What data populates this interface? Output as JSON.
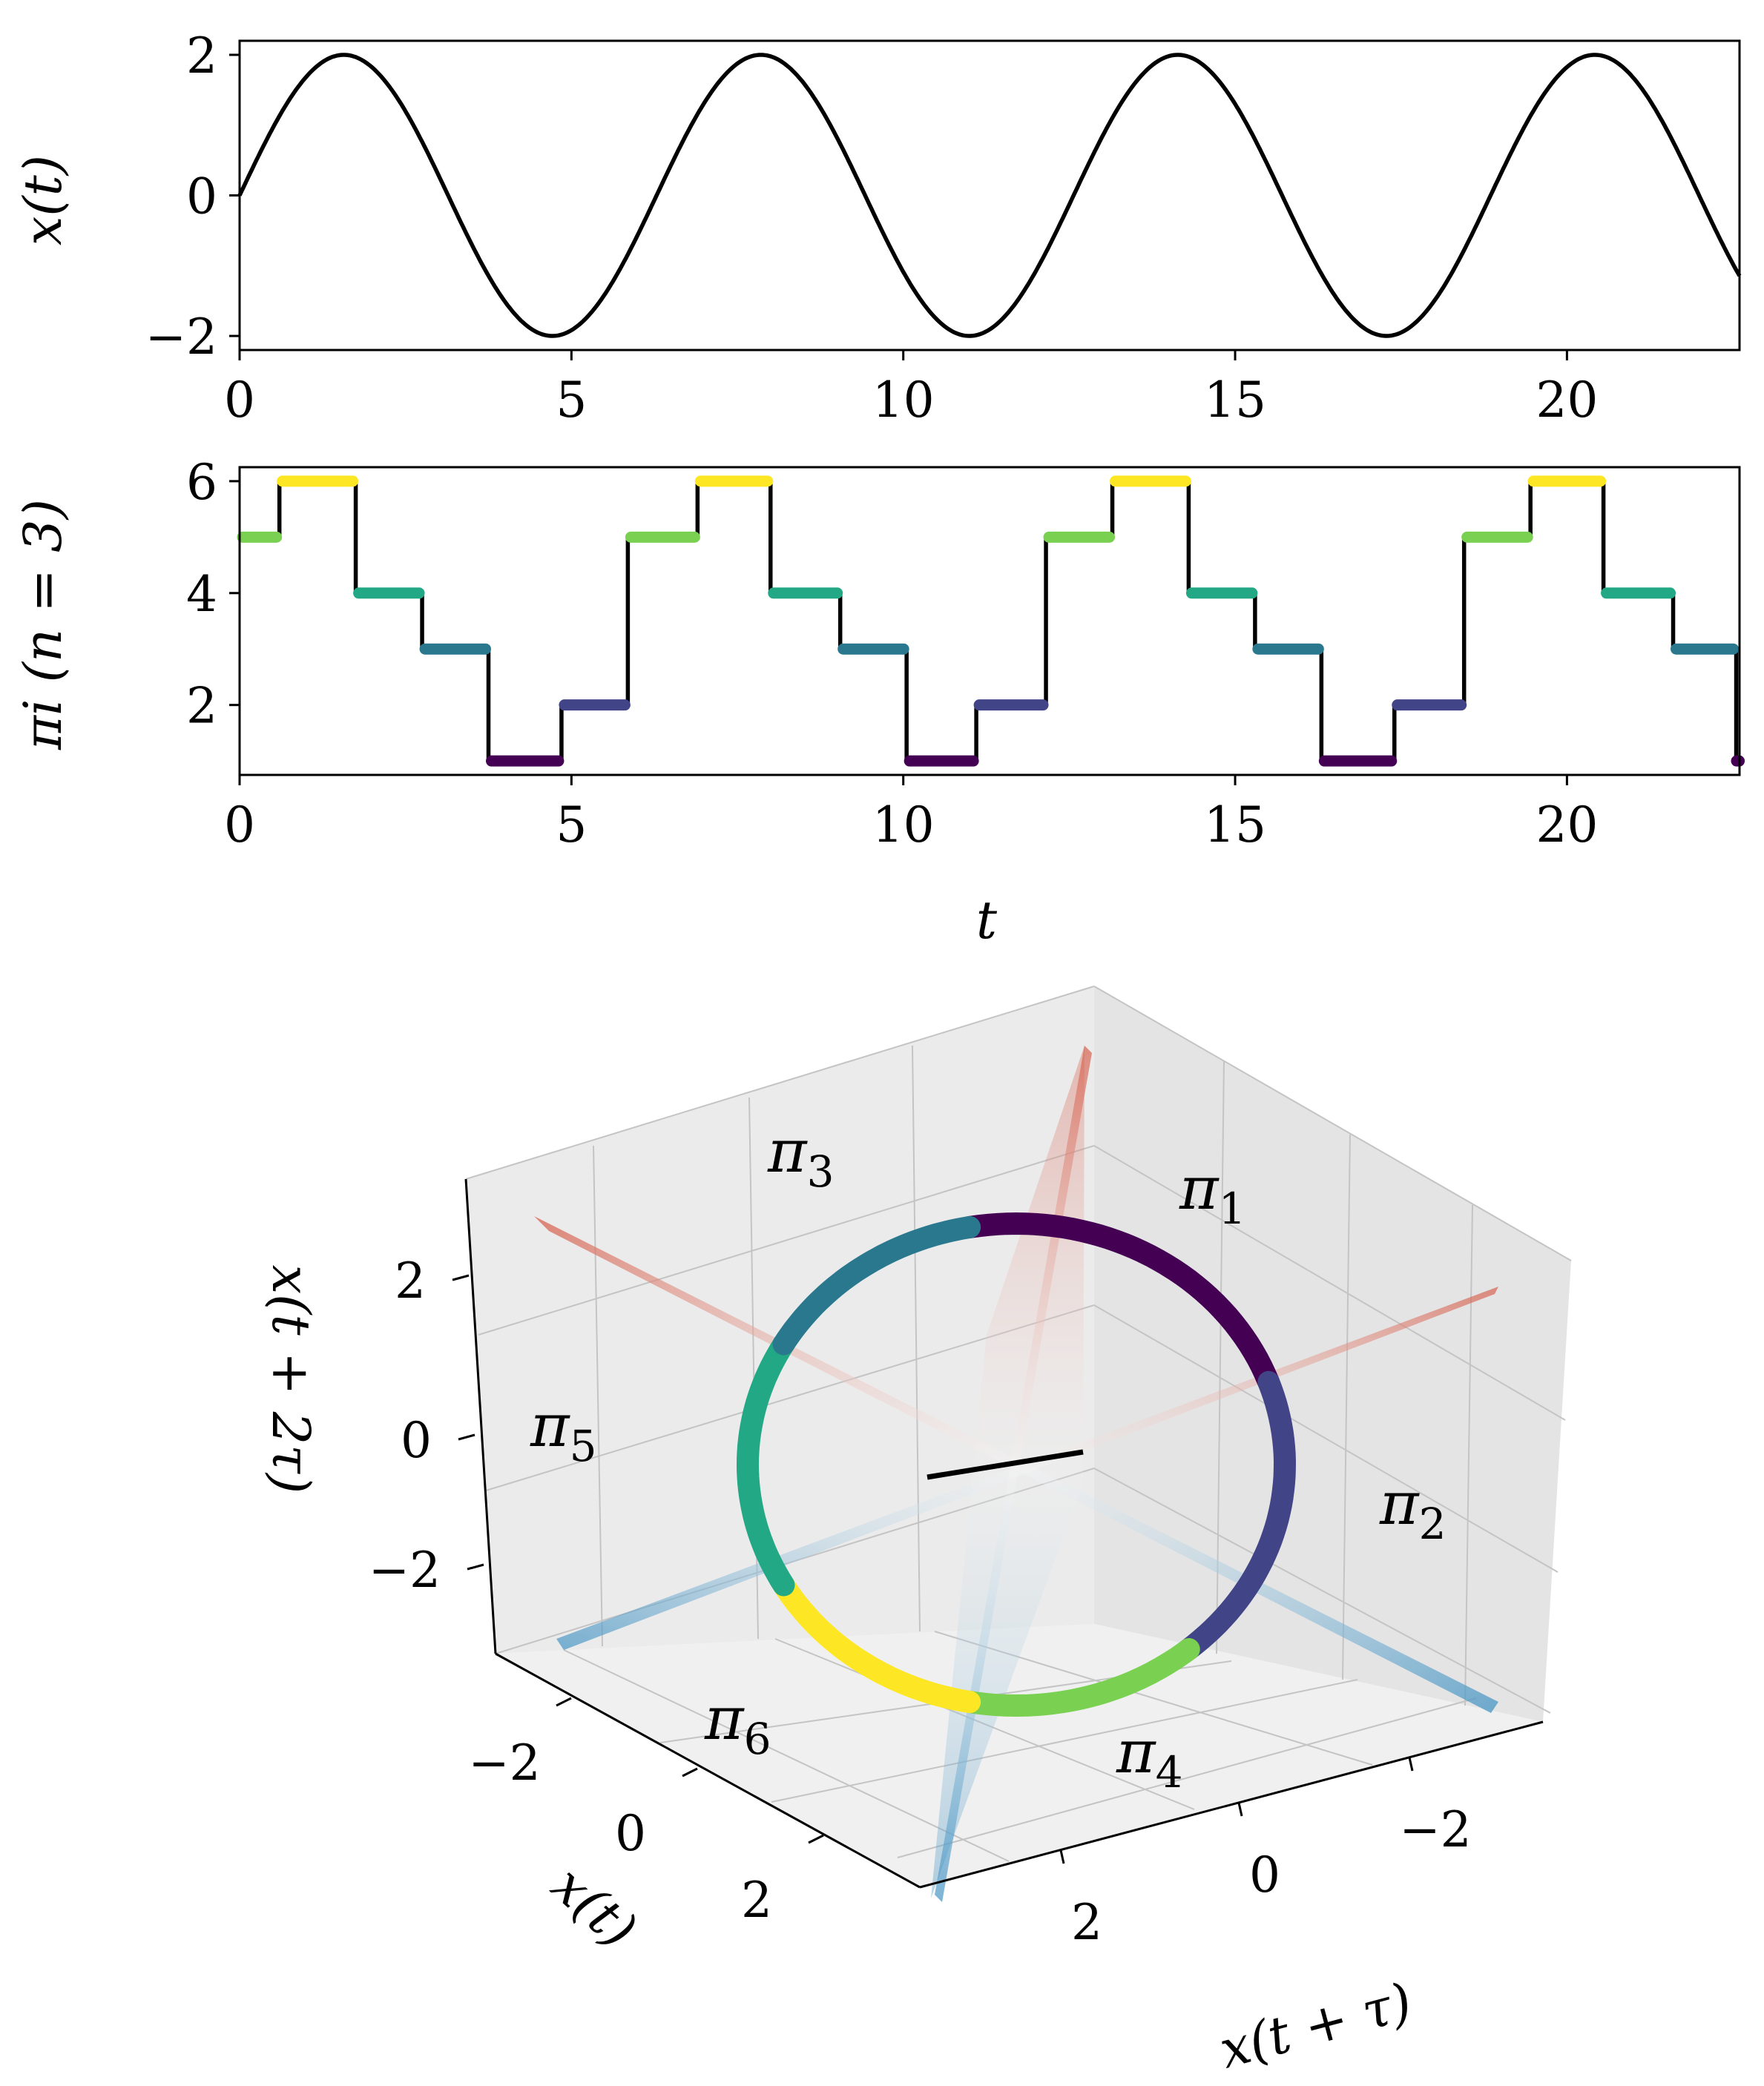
{
  "chart_data": [
    {
      "type": "line",
      "ylabel": "x(t)",
      "xlim": [
        0,
        22.6
      ],
      "ylim": [
        -2.2,
        2.2
      ],
      "xticks": [
        "0",
        "5",
        "10",
        "15",
        "20"
      ],
      "yticks": [
        "−2",
        "0",
        "2"
      ],
      "series": [
        {
          "function": "x(t) = 2 sin(t)",
          "x": [
            0,
            1.5708,
            3.1416,
            4.7124,
            6.2832,
            7.854,
            9.4248,
            10.9956,
            12.5664,
            14.1372,
            15.708,
            17.2788,
            18.8496,
            20.4204,
            21.9911,
            22.6
          ],
          "y": [
            0,
            2,
            0,
            -2,
            0,
            2,
            0,
            -2,
            0,
            2,
            0,
            -2,
            0,
            2,
            0,
            -1.15
          ],
          "color": "#000000"
        }
      ]
    },
    {
      "type": "line",
      "ylabel": "π_i (n = 3)",
      "xlabel": "t",
      "xlim": [
        0,
        22.6
      ],
      "ylim": [
        0.75,
        6.25
      ],
      "xticks": [
        "0",
        "5",
        "10",
        "15",
        "20"
      ],
      "yticks": [
        "2",
        "4",
        "6"
      ],
      "segments": [
        {
          "x0": 0.0,
          "x1": 0.6,
          "value": 5
        },
        {
          "x0": 0.6,
          "x1": 1.75,
          "value": 6
        },
        {
          "x0": 1.75,
          "x1": 2.75,
          "value": 4
        },
        {
          "x0": 2.75,
          "x1": 3.75,
          "value": 3
        },
        {
          "x0": 3.75,
          "x1": 4.85,
          "value": 1
        },
        {
          "x0": 4.85,
          "x1": 5.85,
          "value": 2
        },
        {
          "x0": 5.85,
          "x1": 6.9,
          "value": 5
        },
        {
          "x0": 6.9,
          "x1": 8.0,
          "value": 6
        },
        {
          "x0": 8.0,
          "x1": 9.05,
          "value": 4
        },
        {
          "x0": 9.05,
          "x1": 10.05,
          "value": 3
        },
        {
          "x0": 10.05,
          "x1": 11.1,
          "value": 1
        },
        {
          "x0": 11.1,
          "x1": 12.15,
          "value": 2
        },
        {
          "x0": 12.15,
          "x1": 13.15,
          "value": 5
        },
        {
          "x0": 13.15,
          "x1": 14.3,
          "value": 6
        },
        {
          "x0": 14.3,
          "x1": 15.3,
          "value": 4
        },
        {
          "x0": 15.3,
          "x1": 16.3,
          "value": 3
        },
        {
          "x0": 16.3,
          "x1": 17.4,
          "value": 1
        },
        {
          "x0": 17.4,
          "x1": 18.45,
          "value": 2
        },
        {
          "x0": 18.45,
          "x1": 19.45,
          "value": 5
        },
        {
          "x0": 19.45,
          "x1": 20.55,
          "value": 6
        },
        {
          "x0": 20.55,
          "x1": 21.6,
          "value": 4
        },
        {
          "x0": 21.6,
          "x1": 22.55,
          "value": 3
        },
        {
          "x0": 22.55,
          "x1": 22.6,
          "value": 1
        }
      ],
      "value_colors": {
        "1": "#440154",
        "2": "#414487",
        "3": "#2a788e",
        "4": "#22a884",
        "5": "#7ad151",
        "6": "#fde725"
      }
    },
    {
      "type": "scatter",
      "projection": "3d",
      "xlabel": "x(t)",
      "ylabel": "x(t + τ)",
      "zlabel": "x(t + 2τ)",
      "xticks": [
        "−2",
        "0",
        "2"
      ],
      "yticks": [
        "−2",
        "0",
        "2"
      ],
      "zticks": [
        "−2",
        "0",
        "2"
      ],
      "trajectory": "closed loop (x(t), x(t+τ), x(t+2τ)) of x(t) = 2 sin(t), colored by ordinal pattern π_i",
      "region_labels": [
        "π",
        "π",
        "π",
        "π",
        "π",
        "π"
      ],
      "region_subscripts": [
        "3",
        "1",
        "5",
        "2",
        "6",
        "4"
      ],
      "planes": "boundary planes x(t)=x(t+τ), x(t+τ)=x(t+2τ), x(t)=x(t+2τ), shaded coolwarm",
      "diagonal_color": "#000000"
    }
  ],
  "axis_labels": {
    "top_ylabel": "x(t)",
    "mid_ylabel": "πi (n = 3)",
    "mid_xlabel": "t",
    "x3d": "x(t)",
    "y3d": "x(t + τ)",
    "z3d": "x(t + 2τ)"
  }
}
